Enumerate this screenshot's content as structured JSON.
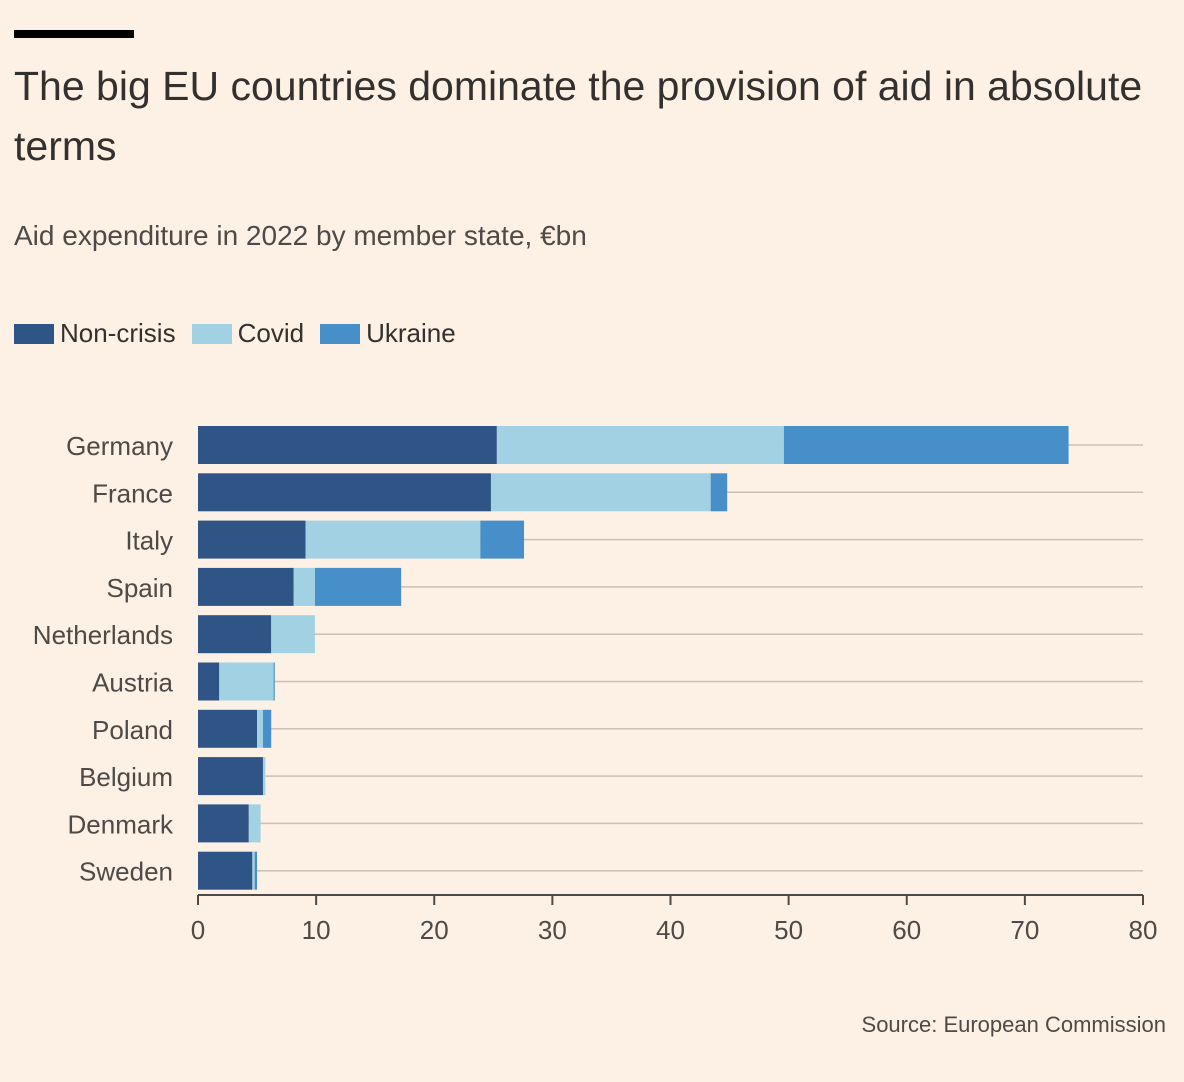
{
  "title": "The big EU countries dominate the provision of aid in absolute terms",
  "subtitle": "Aid expenditure in 2022 by member state, €bn",
  "source": "Source: European Commission",
  "colors": {
    "background": "#fdf1e5",
    "non_crisis": "#2f5486",
    "covid": "#a2d1e3",
    "ukraine": "#478fc9",
    "gridline": "#c9c0b6",
    "axis": "#4e4a47"
  },
  "chart_data": {
    "type": "bar",
    "orientation": "horizontal",
    "stacked": true,
    "categories": [
      "Germany",
      "France",
      "Italy",
      "Spain",
      "Netherlands",
      "Austria",
      "Poland",
      "Belgium",
      "Denmark",
      "Sweden"
    ],
    "series": [
      {
        "name": "Non-crisis",
        "color": "#2f5486",
        "values": [
          25.3,
          24.8,
          9.1,
          8.1,
          6.2,
          1.8,
          5.0,
          5.5,
          4.3,
          4.6
        ]
      },
      {
        "name": "Covid",
        "color": "#a2d1e3",
        "values": [
          24.3,
          18.6,
          14.8,
          1.8,
          3.7,
          4.6,
          0.5,
          0.2,
          1.0,
          0.2
        ]
      },
      {
        "name": "Ukraine",
        "color": "#478fc9",
        "values": [
          24.1,
          1.4,
          3.7,
          7.3,
          0.0,
          0.1,
          0.7,
          0.0,
          0.0,
          0.2
        ]
      }
    ],
    "xlim": [
      0,
      80
    ],
    "xticks": [
      0,
      10,
      20,
      30,
      40,
      50,
      60,
      70,
      80
    ],
    "xlabel": "",
    "ylabel": "",
    "legend_position": "top-left",
    "grid": "horizontal row lines"
  }
}
